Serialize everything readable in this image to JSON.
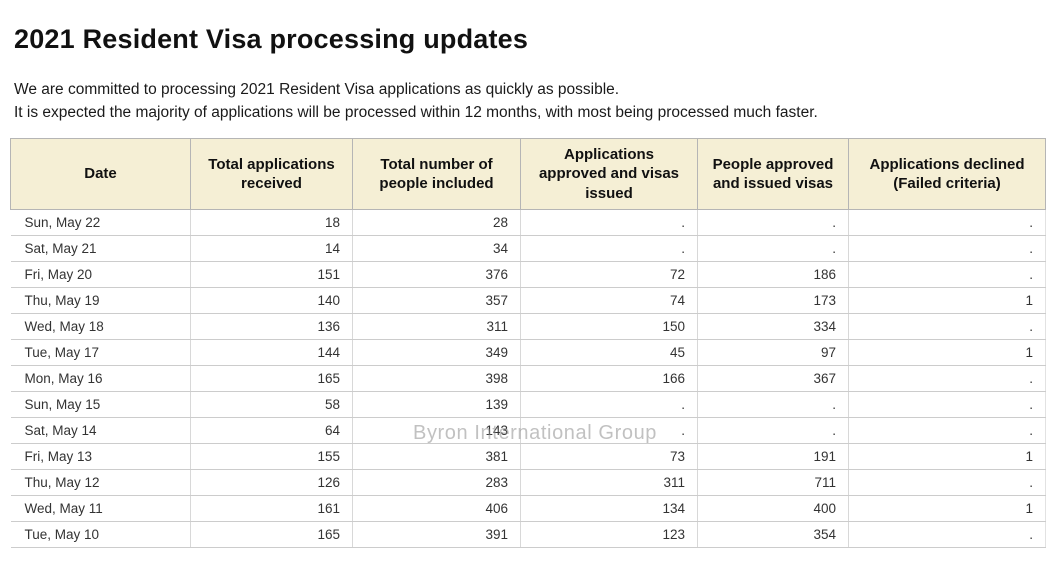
{
  "page": {
    "title": "2021 Resident Visa processing updates",
    "intro_line1": "We are committed to processing 2021 Resident Visa applications as quickly as possible.",
    "intro_line2": "It is expected the majority of applications will be processed within 12 months, with most being processed much faster.",
    "watermark": "Byron International Group"
  },
  "colors": {
    "header_bg": "#f5efd5",
    "header_border": "#b5b5b5",
    "row_border": "#cccccc",
    "body_text": "#333333",
    "watermark_gray": "#8f8f8f"
  },
  "table": {
    "columns": [
      "Date",
      "Total applications received",
      "Total number of people included",
      "Applications approved and visas issued",
      "People approved and issued visas",
      "Applications declined (Failed criteria)"
    ],
    "rows": [
      [
        "Sun, May 22",
        "18",
        "28",
        ".",
        ".",
        "."
      ],
      [
        "Sat, May 21",
        "14",
        "34",
        ".",
        ".",
        "."
      ],
      [
        "Fri, May 20",
        "151",
        "376",
        "72",
        "186",
        "."
      ],
      [
        "Thu, May 19",
        "140",
        "357",
        "74",
        "173",
        "1"
      ],
      [
        "Wed, May 18",
        "136",
        "311",
        "150",
        "334",
        "."
      ],
      [
        "Tue, May 17",
        "144",
        "349",
        "45",
        "97",
        "1"
      ],
      [
        "Mon, May 16",
        "165",
        "398",
        "166",
        "367",
        "."
      ],
      [
        "Sun, May 15",
        "58",
        "139",
        ".",
        ".",
        "."
      ],
      [
        "Sat, May 14",
        "64",
        "143",
        ".",
        ".",
        "."
      ],
      [
        "Fri, May 13",
        "155",
        "381",
        "73",
        "191",
        "1"
      ],
      [
        "Thu, May 12",
        "126",
        "283",
        "311",
        "711",
        "."
      ],
      [
        "Wed, May 11",
        "161",
        "406",
        "134",
        "400",
        "1"
      ],
      [
        "Tue, May 10",
        "165",
        "391",
        "123",
        "354",
        "."
      ]
    ]
  }
}
